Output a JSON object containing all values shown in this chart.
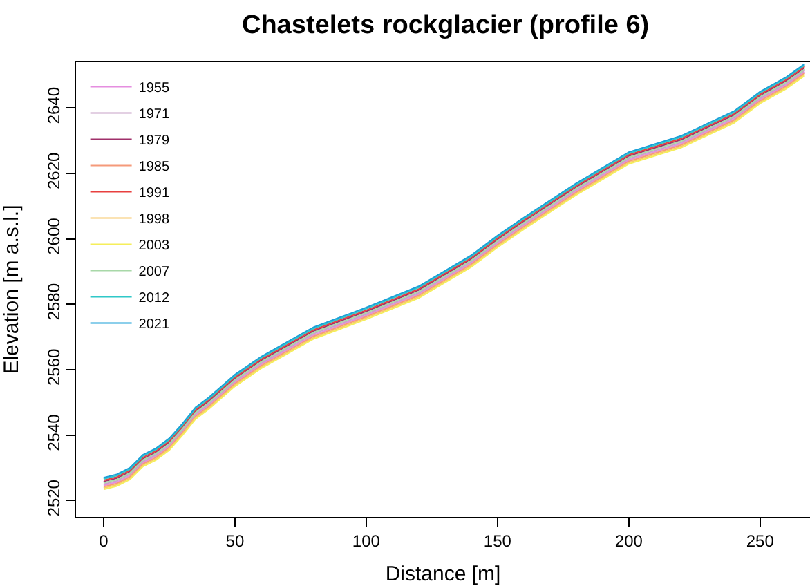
{
  "chart_data": {
    "type": "line",
    "title": "Chastelets rockglacier (profile 6)",
    "xlabel": "Distance [m]",
    "ylabel": "Elevation [m a.s.l.]",
    "x": [
      0,
      5,
      10,
      15,
      20,
      25,
      30,
      35,
      40,
      50,
      60,
      70,
      80,
      90,
      100,
      120,
      140,
      150,
      160,
      180,
      200,
      220,
      240,
      250,
      260,
      267
    ],
    "xlim": [
      -10.5,
      269
    ],
    "xticks": [
      0,
      50,
      100,
      150,
      200,
      250
    ],
    "ylim": [
      2515,
      2654
    ],
    "yticks": [
      2520,
      2540,
      2560,
      2580,
      2600,
      2620,
      2640
    ],
    "legend": "top left",
    "marker": "none",
    "line_style": "solid",
    "series": [
      {
        "name": "1955",
        "color": "#e58ee0",
        "values": [
          2524.6,
          2525.6,
          2527.6,
          2531.6,
          2533.6,
          2536.6,
          2541.1,
          2546.1,
          2549.1,
          2556.1,
          2561.6,
          2566.1,
          2570.6,
          2573.6,
          2576.6,
          2583.1,
          2592.6,
          2598.6,
          2604.1,
          2614.6,
          2624.1,
          2629.1,
          2636.6,
          2642.6,
          2647.1,
          2651.1
        ]
      },
      {
        "name": "1971",
        "color": "#c8a2c8",
        "values": [
          2525,
          2526,
          2528,
          2532,
          2534,
          2537,
          2541.5,
          2546.5,
          2549.5,
          2556.5,
          2562,
          2566.5,
          2571,
          2574,
          2577,
          2583.5,
          2593,
          2599,
          2604.5,
          2615,
          2624.5,
          2629.5,
          2637,
          2643,
          2647.5,
          2651.5
        ]
      },
      {
        "name": "1979",
        "color": "#a0306a",
        "values": [
          2525.8,
          2526.8,
          2528.8,
          2532.8,
          2534.8,
          2537.8,
          2542.3,
          2547.3,
          2550.3,
          2557.3,
          2562.8,
          2567.3,
          2571.8,
          2574.8,
          2577.8,
          2584.3,
          2593.8,
          2599.8,
          2605.3,
          2615.8,
          2625.3,
          2630.3,
          2637.8,
          2643.8,
          2648.3,
          2652.3
        ]
      },
      {
        "name": "1985",
        "color": "#f59a7a",
        "values": [
          2524.2,
          2525.2,
          2527.2,
          2531.2,
          2533.2,
          2536.2,
          2540.7,
          2545.7,
          2548.7,
          2555.7,
          2561.2,
          2565.7,
          2570.2,
          2573.2,
          2576.2,
          2582.7,
          2592.2,
          2598.2,
          2603.7,
          2614.2,
          2623.7,
          2628.7,
          2636.2,
          2642.2,
          2646.7,
          2650.7
        ]
      },
      {
        "name": "1991",
        "color": "#e8403f",
        "values": [
          2526.2,
          2527.2,
          2529.2,
          2533.2,
          2535.2,
          2538.2,
          2542.7,
          2547.7,
          2550.7,
          2557.7,
          2563.2,
          2567.7,
          2572.2,
          2575.2,
          2578.2,
          2584.7,
          2594.2,
          2600.2,
          2605.7,
          2616.2,
          2625.7,
          2630.7,
          2638.2,
          2644.2,
          2648.7,
          2652.7
        ]
      },
      {
        "name": "1998",
        "color": "#f7c86a",
        "values": [
          2523.8,
          2524.8,
          2526.8,
          2530.8,
          2532.8,
          2535.8,
          2540.3,
          2545.3,
          2548.3,
          2555.3,
          2560.8,
          2565.3,
          2569.8,
          2572.8,
          2575.8,
          2582.3,
          2591.8,
          2597.8,
          2603.3,
          2613.8,
          2623.3,
          2628.3,
          2635.8,
          2641.8,
          2646.3,
          2650.3
        ]
      },
      {
        "name": "2003",
        "color": "#f5ee5a",
        "values": [
          2523.4,
          2524.4,
          2526.4,
          2530.4,
          2532.4,
          2535.4,
          2539.9,
          2544.9,
          2547.9,
          2554.9,
          2560.4,
          2564.9,
          2569.4,
          2572.4,
          2575.4,
          2581.9,
          2591.4,
          2597.4,
          2602.9,
          2613.4,
          2622.9,
          2627.9,
          2635.4,
          2641.4,
          2645.9,
          2649.9
        ]
      },
      {
        "name": "2007",
        "color": "#a8d8a8",
        "values": [
          2525.4,
          2526.4,
          2528.4,
          2532.4,
          2534.4,
          2537.4,
          2541.9,
          2546.9,
          2549.9,
          2556.9,
          2562.4,
          2566.9,
          2571.4,
          2574.4,
          2577.4,
          2583.9,
          2593.4,
          2599.4,
          2604.9,
          2615.4,
          2624.9,
          2629.9,
          2637.4,
          2643.4,
          2647.9,
          2651.9
        ]
      },
      {
        "name": "2012",
        "color": "#30c8c8",
        "values": [
          2526.6,
          2527.6,
          2529.6,
          2533.6,
          2535.6,
          2538.6,
          2543.1,
          2548.1,
          2551.1,
          2558.1,
          2563.6,
          2568.1,
          2572.6,
          2575.6,
          2578.6,
          2585.1,
          2594.6,
          2600.6,
          2606.1,
          2616.6,
          2626.1,
          2631.1,
          2638.6,
          2644.6,
          2649.1,
          2653.1
        ]
      },
      {
        "name": "2021",
        "color": "#1aa0d8",
        "values": [
          2527,
          2528,
          2530,
          2534,
          2536,
          2539,
          2543.5,
          2548.5,
          2551.5,
          2558.5,
          2564,
          2568.5,
          2573,
          2576,
          2579,
          2585.5,
          2595,
          2601,
          2606.5,
          2617,
          2626.5,
          2631.5,
          2639,
          2645,
          2649.5,
          2653.5
        ]
      }
    ]
  }
}
